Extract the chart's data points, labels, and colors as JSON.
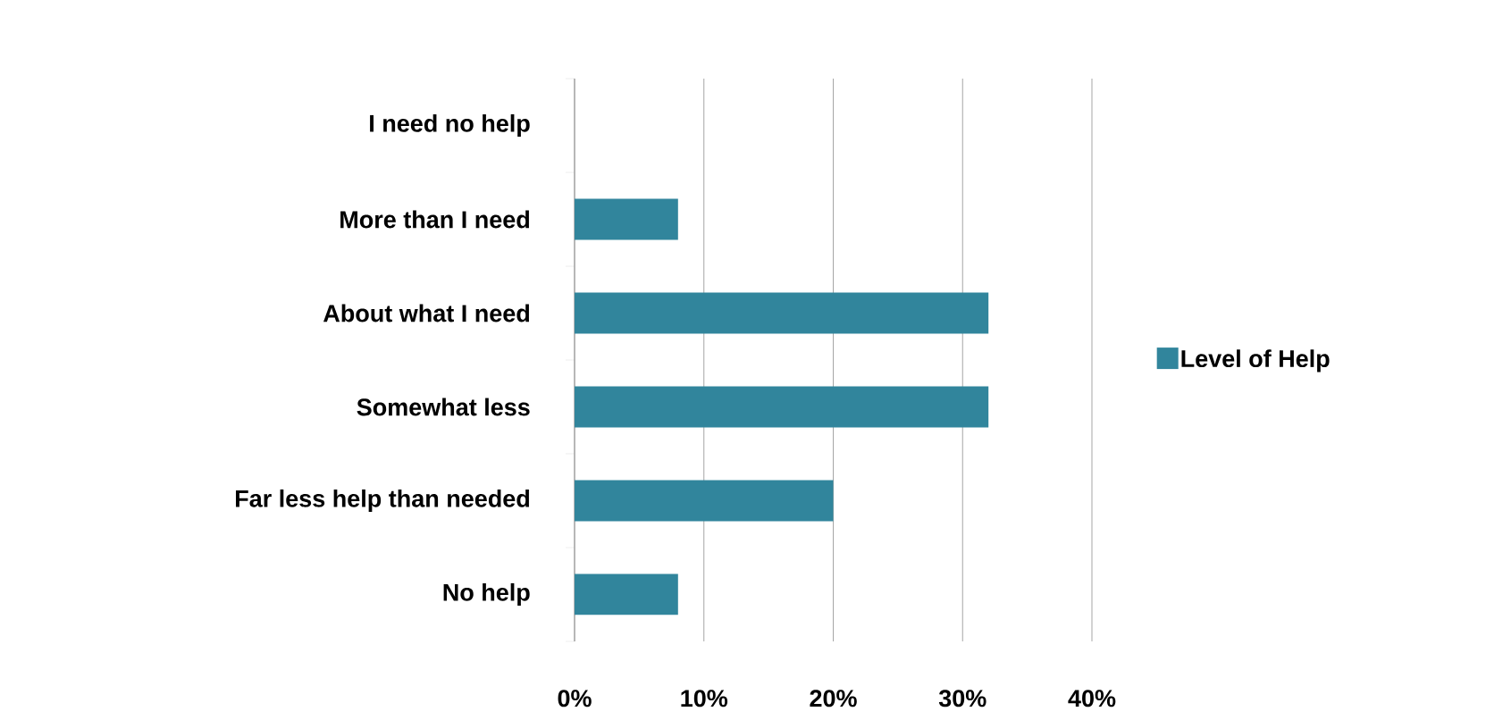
{
  "chart_data": {
    "type": "bar",
    "orientation": "horizontal",
    "categories": [
      "I need no help",
      "More than I need",
      "About what I need",
      "Somewhat less",
      "Far less help than needed",
      "No help"
    ],
    "series": [
      {
        "name": "Level of Help",
        "color": "#31859c",
        "values": [
          0,
          8,
          32,
          32,
          20,
          8
        ]
      }
    ],
    "xlim": [
      0,
      40
    ],
    "xticks": [
      {
        "value": 0,
        "label": "0%"
      },
      {
        "value": 10,
        "label": "10%"
      },
      {
        "value": 20,
        "label": "20%"
      },
      {
        "value": 30,
        "label": "30%"
      },
      {
        "value": 40,
        "label": "40%"
      }
    ],
    "grid": "x",
    "legend": "right"
  }
}
